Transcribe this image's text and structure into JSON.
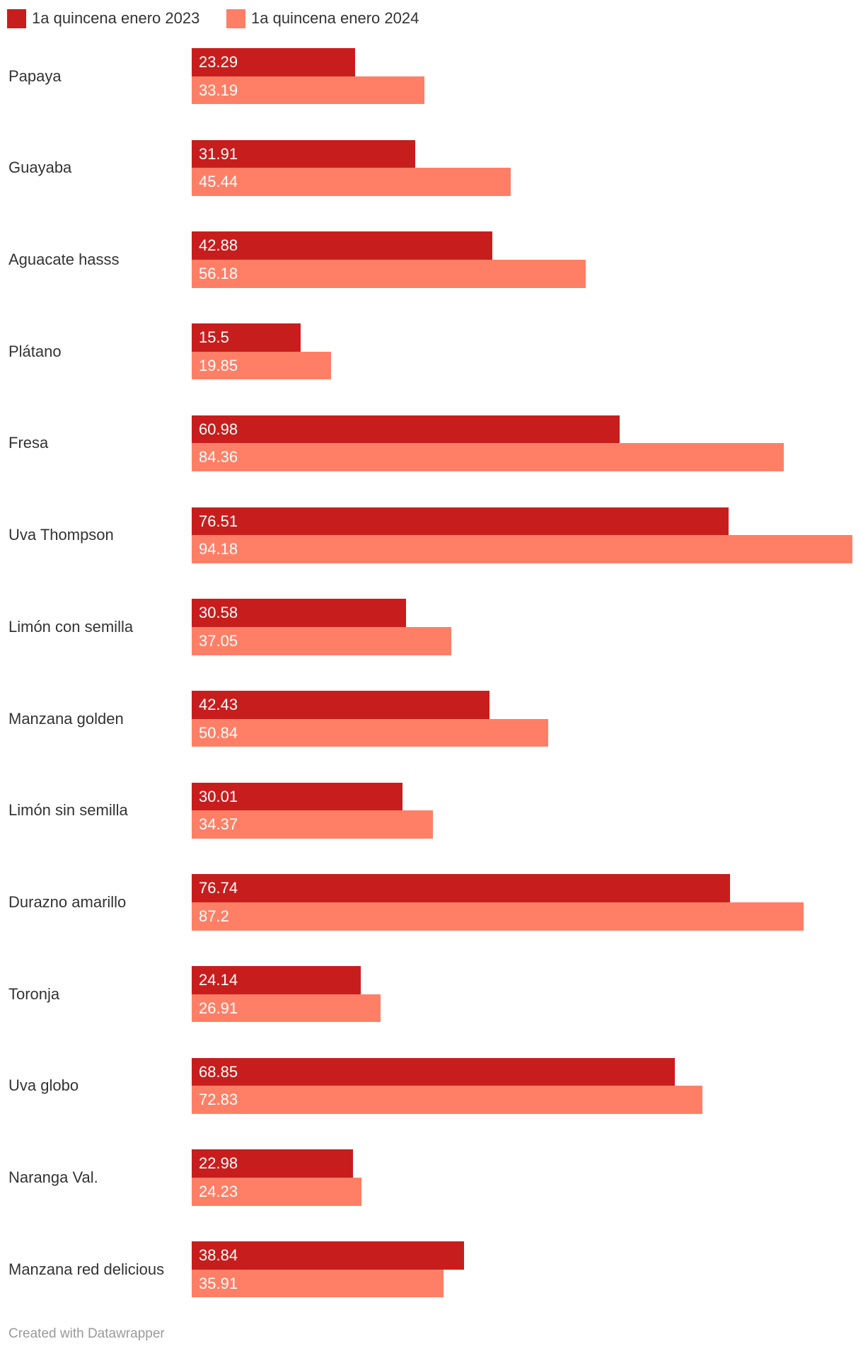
{
  "chart_data": {
    "type": "bar",
    "orientation": "horizontal",
    "title": "",
    "xlabel": "",
    "ylabel": "",
    "grid": false,
    "legend_position": "top-left",
    "data_labels": "inside-bar",
    "categories": [
      "Papaya",
      "Guayaba",
      "Aguacate hasss",
      "Plátano",
      "Fresa",
      "Uva Thompson",
      "Limón con semilla",
      "Manzana golden",
      "Limón sin semilla",
      "Durazno amarillo",
      "Toronja",
      "Uva globo",
      "Naranga Val.",
      "Manzana red delicious"
    ],
    "series": [
      {
        "name": "1a quincena enero 2023",
        "color": "#c71e1d",
        "values": [
          23.29,
          31.91,
          42.88,
          15.5,
          60.98,
          76.51,
          30.58,
          42.43,
          30.01,
          76.74,
          24.14,
          68.85,
          22.98,
          38.84
        ]
      },
      {
        "name": "1a quincena enero 2024",
        "color": "#ff7f66",
        "values": [
          33.19,
          45.44,
          56.18,
          19.85,
          84.36,
          94.18,
          37.05,
          50.84,
          34.37,
          87.2,
          26.91,
          72.83,
          24.23,
          35.91
        ]
      }
    ]
  },
  "footer": {
    "credit": "Created with Datawrapper"
  }
}
